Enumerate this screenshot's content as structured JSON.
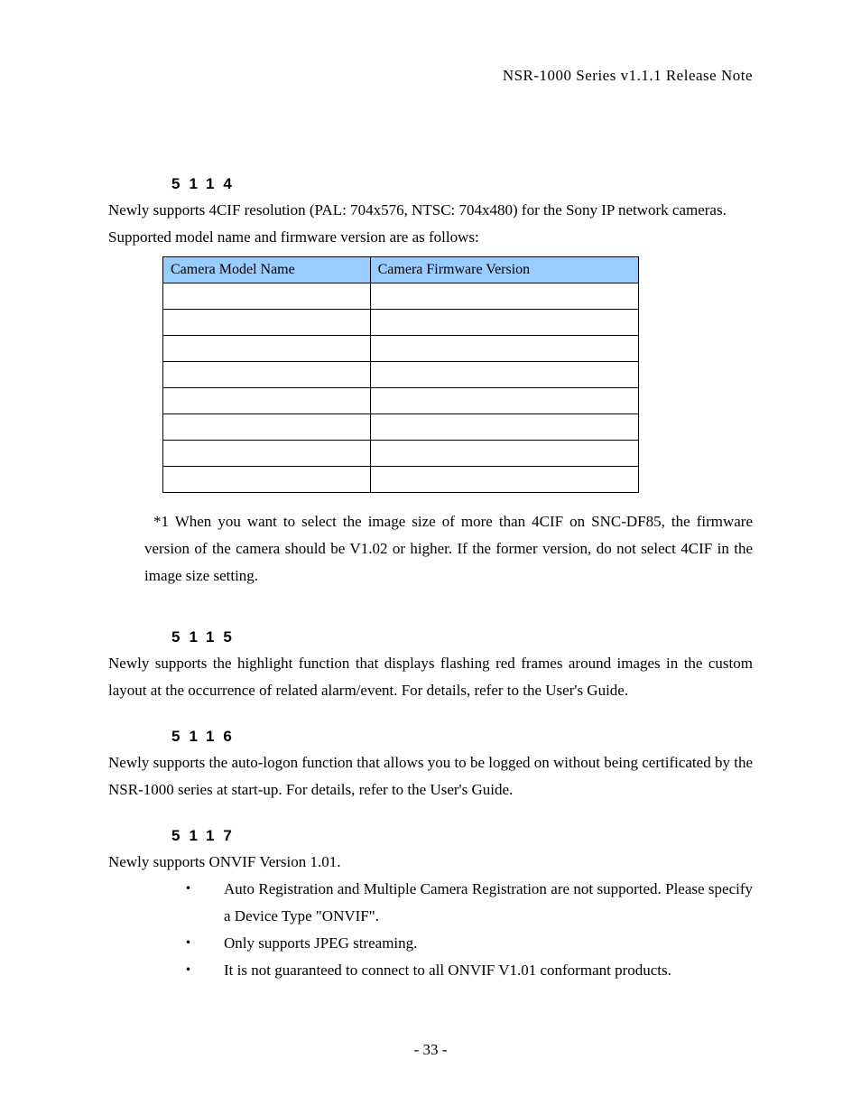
{
  "header": {
    "title": "NSR-1000 Series v1.1.1 Release Note"
  },
  "page_number": "- 33 -",
  "table": {
    "header_bg": "#99ccff",
    "border_color": "#000000",
    "columns": [
      "Camera Model Name",
      "Camera Firmware Version"
    ],
    "rows": [
      [
        "",
        ""
      ],
      [
        "",
        ""
      ],
      [
        "",
        ""
      ],
      [
        "",
        ""
      ],
      [
        "",
        ""
      ],
      [
        "",
        ""
      ],
      [
        "",
        ""
      ],
      [
        "",
        ""
      ]
    ]
  },
  "sections": {
    "s5114": {
      "heading": "5114",
      "para1": "Newly supports 4CIF resolution (PAL: 704x576, NTSC: 704x480) for the Sony IP network cameras.",
      "para2": "Supported model name and firmware version are as follows:",
      "footnote": "*1 When you want to select the image size of more than 4CIF on SNC-DF85, the firmware version of the camera should be V1.02 or higher. If the former version, do not select 4CIF in the image size setting."
    },
    "s5115": {
      "heading": "5115",
      "para1": "Newly supports the highlight function that displays flashing red frames around images in the custom layout at the occurrence of related alarm/event. For details, refer to the User's Guide."
    },
    "s5116": {
      "heading": "5116",
      "para1": "Newly supports the auto-logon function that allows you to be logged on without being certificated by the NSR-1000 series at start-up. For details, refer to the User's Guide."
    },
    "s5117": {
      "heading": "5117",
      "para1": "Newly supports ONVIF Version 1.01.",
      "bullets": [
        "Auto Registration and Multiple Camera Registration are not supported. Please specify a Device Type \"ONVIF\".",
        "Only supports JPEG streaming.",
        "It is not guaranteed to connect to all ONVIF V1.01 conformant products."
      ]
    }
  }
}
